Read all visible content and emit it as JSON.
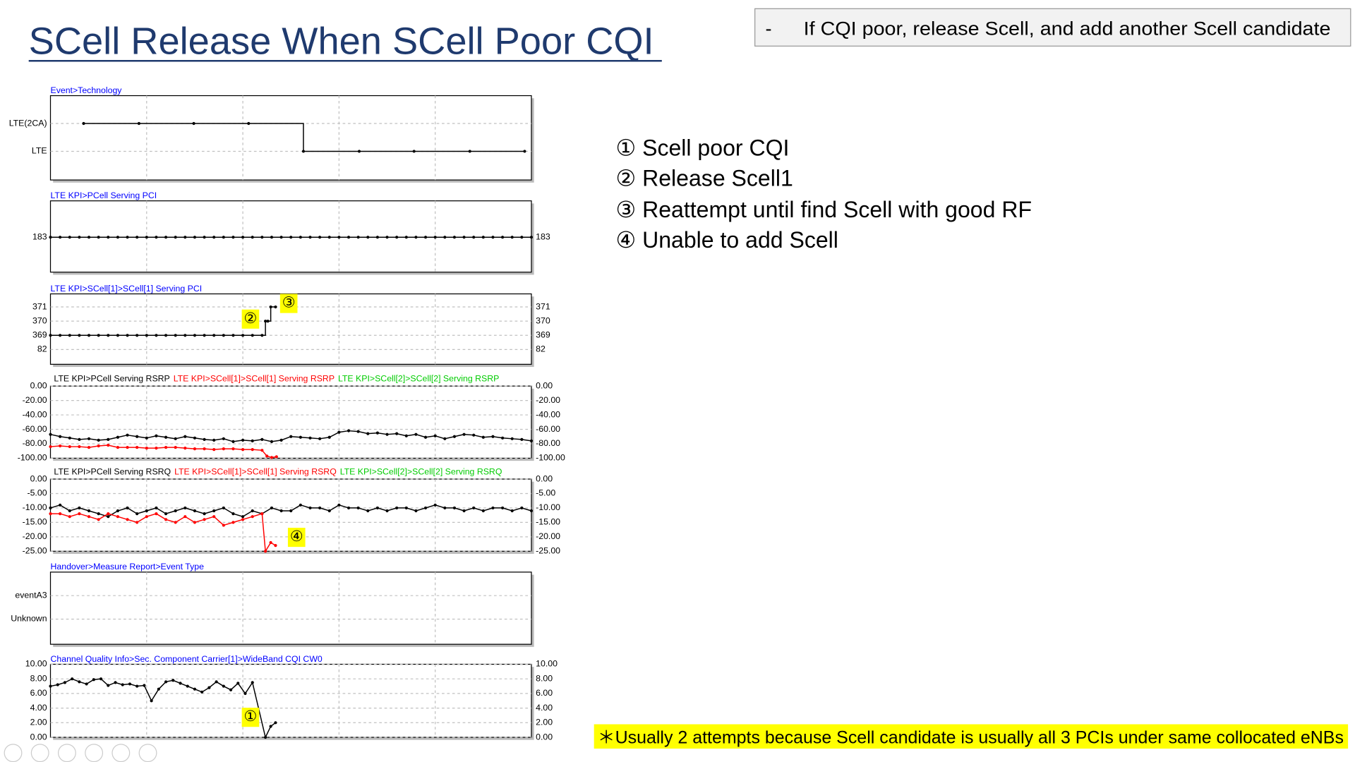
{
  "title": "SCell Release When SCell Poor CQI",
  "note_box": {
    "bullet": "-",
    "text": "If CQI poor, release Scell, and add another Scell candidate"
  },
  "steps": [
    "① Scell poor CQI",
    "② Release Scell1",
    "③ Reattempt until find Scell with good RF",
    "④ Unable to add Scell"
  ],
  "footnote": "＊Usually 2 attempts because Scell candidate is usually all 3 PCIs under same collocated eNBs",
  "chart_data": [
    {
      "type": "step",
      "title": "Event>Technology",
      "ycategories": [
        "LTE",
        "LTE(2CA)"
      ],
      "ylim": [
        -1.03,
        2
      ],
      "xlim": [
        0,
        100
      ],
      "xgrid": [
        20,
        40,
        60,
        80
      ],
      "grid": true,
      "right_axis": false,
      "series": [
        {
          "color": "#000000",
          "x": [
            6.9,
            18.4,
            29.8,
            41.2,
            52.6,
            64.2,
            75.6,
            87.2,
            98.6
          ],
          "values": [
            "LTE(2CA)",
            "LTE(2CA)",
            "LTE(2CA)",
            "LTE(2CA)",
            "LTE",
            "LTE",
            "LTE",
            "LTE",
            "LTE"
          ]
        }
      ]
    },
    {
      "type": "step",
      "title": "LTE KPI>PCell Serving PCI",
      "ycategories": [
        183
      ],
      "ylim": [
        -0.49,
        0.51
      ],
      "xlim": [
        0,
        100
      ],
      "xgrid": [
        20,
        40,
        60,
        80
      ],
      "grid": true,
      "right_axis": true,
      "series": [
        {
          "color": "#000000",
          "x": [
            0,
            2,
            4,
            6,
            8,
            10,
            12,
            14,
            16,
            18,
            20,
            22,
            24,
            26,
            28,
            30,
            32,
            34,
            36,
            38,
            40,
            42,
            44,
            46,
            48,
            50,
            52,
            54,
            56,
            58,
            60,
            62,
            64,
            66,
            68,
            70,
            72,
            74,
            76,
            78,
            80,
            82,
            84,
            86,
            88,
            90,
            92,
            94,
            96,
            98,
            100
          ],
          "values": [
            183,
            183,
            183,
            183,
            183,
            183,
            183,
            183,
            183,
            183,
            183,
            183,
            183,
            183,
            183,
            183,
            183,
            183,
            183,
            183,
            183,
            183,
            183,
            183,
            183,
            183,
            183,
            183,
            183,
            183,
            183,
            183,
            183,
            183,
            183,
            183,
            183,
            183,
            183,
            183,
            183,
            183,
            183,
            183,
            183,
            183,
            183,
            183,
            183,
            183,
            183
          ]
        }
      ]
    },
    {
      "type": "step",
      "title": "LTE KPI>SCell[1]>SCell[1] Serving PCI",
      "ycategories": [
        82,
        369,
        370,
        371
      ],
      "ylim": [
        -1.04,
        3.92
      ],
      "xlim": [
        0,
        100
      ],
      "xgrid": [
        20,
        40,
        60,
        80
      ],
      "grid": true,
      "right_axis": true,
      "annotations": [
        "②",
        "③"
      ],
      "series": [
        {
          "color": "#000000",
          "x": [
            0,
            2,
            4,
            6,
            8,
            10,
            12,
            14,
            16,
            18,
            20,
            22,
            24,
            26,
            28,
            30,
            32,
            34,
            36,
            38,
            40,
            42,
            44,
            44.7,
            45.2,
            45.8,
            46.8
          ],
          "values": [
            369,
            369,
            369,
            369,
            369,
            369,
            369,
            369,
            369,
            369,
            369,
            369,
            369,
            369,
            369,
            369,
            369,
            369,
            369,
            369,
            369,
            369,
            369,
            370,
            370,
            371,
            371
          ]
        }
      ]
    },
    {
      "type": "line",
      "ylim": [
        -100,
        0
      ],
      "xlim": [
        0,
        100
      ],
      "xgrid": [
        20,
        40,
        60,
        80
      ],
      "grid": true,
      "right_axis": true,
      "yticks": [
        {
          "value": 0,
          "label": "0.00"
        },
        {
          "value": -20,
          "label": "-20.00"
        },
        {
          "value": -40,
          "label": "-40.00"
        },
        {
          "value": -60,
          "label": "-60.00"
        },
        {
          "value": -80,
          "label": "-80.00"
        },
        {
          "value": -100,
          "label": "-100.00"
        }
      ],
      "series": [
        {
          "name": "LTE KPI>PCell Serving RSRP",
          "color": "#000000",
          "x": [
            0,
            2,
            4,
            6,
            8,
            10,
            12,
            14,
            16,
            18,
            20,
            22,
            24,
            26,
            28,
            30,
            32,
            34,
            36,
            38,
            40,
            42,
            44,
            46,
            48,
            50,
            52,
            54,
            56,
            58,
            60,
            62,
            64,
            66,
            68,
            70,
            72,
            74,
            76,
            78,
            80,
            82,
            84,
            86,
            88,
            90,
            92,
            94,
            96,
            98,
            100
          ],
          "values": [
            -67,
            -70,
            -72,
            -74,
            -73,
            -75,
            -74,
            -71,
            -68,
            -70,
            -72,
            -69,
            -71,
            -73,
            -70,
            -72,
            -74,
            -75,
            -73,
            -77,
            -75,
            -76,
            -74,
            -77,
            -75,
            -70,
            -71,
            -72,
            -73,
            -71,
            -64,
            -62,
            -63,
            -66,
            -65,
            -67,
            -66,
            -69,
            -67,
            -71,
            -69,
            -73,
            -70,
            -67,
            -68,
            -71,
            -70,
            -72,
            -73,
            -74,
            -76
          ]
        },
        {
          "name": "LTE KPI>SCell[1]>SCell[1] Serving RSRP",
          "color": "#ff0000",
          "x": [
            0,
            2,
            4,
            6,
            8,
            10,
            12,
            14,
            16,
            18,
            20,
            22,
            24,
            26,
            28,
            30,
            32,
            34,
            36,
            38,
            40,
            42,
            44,
            45,
            46,
            47
          ],
          "values": [
            -84,
            -83,
            -84,
            -84,
            -85,
            -83,
            -82,
            -85,
            -85,
            -85,
            -86,
            -86,
            -85,
            -85,
            -86,
            -87,
            -87,
            -88,
            -87,
            -87,
            -88,
            -88,
            -89,
            -97,
            -99,
            -98
          ]
        },
        {
          "name": "LTE KPI>SCell[2]>SCell[2] Serving RSRP",
          "color": "#00cc00",
          "x": [],
          "values": []
        }
      ]
    },
    {
      "type": "line",
      "ylim": [
        -25,
        0
      ],
      "xlim": [
        0,
        100
      ],
      "xgrid": [
        20,
        40,
        60,
        80
      ],
      "grid": true,
      "right_axis": true,
      "annotations": [
        "④"
      ],
      "yticks": [
        {
          "value": 0,
          "label": "0.00"
        },
        {
          "value": -5,
          "label": "-5.00"
        },
        {
          "value": -10,
          "label": "-10.00"
        },
        {
          "value": -15,
          "label": "-15.00"
        },
        {
          "value": -20,
          "label": "-20.00"
        },
        {
          "value": -25,
          "label": "-25.00"
        }
      ],
      "series": [
        {
          "name": "LTE KPI>PCell Serving RSRQ",
          "color": "#000000",
          "x": [
            0,
            2,
            4,
            6,
            8,
            10,
            12,
            14,
            16,
            18,
            20,
            22,
            24,
            26,
            28,
            30,
            32,
            34,
            36,
            38,
            40,
            42,
            44,
            46,
            48,
            50,
            52,
            54,
            56,
            58,
            60,
            62,
            64,
            66,
            68,
            70,
            72,
            74,
            76,
            78,
            80,
            82,
            84,
            86,
            88,
            90,
            92,
            94,
            96,
            98,
            100
          ],
          "values": [
            -10,
            -9,
            -11,
            -10,
            -11,
            -12,
            -13,
            -11,
            -10,
            -12,
            -11,
            -10,
            -12,
            -11,
            -10,
            -11,
            -12,
            -11,
            -10,
            -12,
            -13,
            -11,
            -12,
            -10,
            -11,
            -11,
            -9,
            -10,
            -10,
            -11,
            -9,
            -10,
            -10,
            -11,
            -10,
            -11,
            -10,
            -10,
            -11,
            -10,
            -9,
            -10,
            -10,
            -11,
            -10,
            -11,
            -10,
            -10,
            -11,
            -10,
            -11
          ]
        },
        {
          "name": "LTE KPI>SCell[1]>SCell[1] Serving RSRQ",
          "color": "#ff0000",
          "x": [
            0,
            2,
            4,
            6,
            8,
            10,
            12,
            14,
            16,
            18,
            20,
            22,
            24,
            26,
            28,
            30,
            32,
            34,
            36,
            38,
            40,
            42,
            44,
            44.7,
            45.8,
            46.8
          ],
          "values": [
            -12,
            -12,
            -13,
            -12,
            -13,
            -14,
            -12,
            -13,
            -14,
            -15,
            -13,
            -12,
            -14,
            -15,
            -13,
            -15,
            -14,
            -13,
            -16,
            -15,
            -14,
            -13,
            -12,
            -25,
            -22,
            -23
          ]
        },
        {
          "name": "LTE KPI>SCell[2]>SCell[2] Serving RSRQ",
          "color": "#00cc00",
          "x": [],
          "values": []
        }
      ]
    },
    {
      "type": "step",
      "title": "Handover>Measure Report>Event Type",
      "ycategories": [
        "Unknown",
        "eventA3"
      ],
      "ylim": [
        -1.07,
        2
      ],
      "xlim": [
        0,
        100
      ],
      "xgrid": [
        20,
        40,
        60,
        80
      ],
      "grid": true,
      "right_axis": false,
      "series": []
    },
    {
      "type": "line",
      "title": "Channel Quality Info>Sec. Component Carrier[1]>WideBand CQI CW0",
      "ylim": [
        0,
        10
      ],
      "xlim": [
        0,
        100
      ],
      "xgrid": [
        20,
        40,
        60,
        80
      ],
      "grid": true,
      "right_axis": true,
      "annotations": [
        "①"
      ],
      "yticks": [
        {
          "value": 10,
          "label": "10.00"
        },
        {
          "value": 8,
          "label": "8.00"
        },
        {
          "value": 6,
          "label": "6.00"
        },
        {
          "value": 4,
          "label": "4.00"
        },
        {
          "value": 2,
          "label": "2.00"
        },
        {
          "value": 0,
          "label": "0.00"
        }
      ],
      "series": [
        {
          "color": "#000000",
          "x": [
            0,
            1.5,
            3,
            4.5,
            6,
            7.5,
            9,
            10.5,
            12,
            13.5,
            15,
            16.5,
            18,
            19.5,
            21,
            22.5,
            24,
            25.5,
            27,
            28.5,
            30,
            31.5,
            33,
            34.5,
            36,
            37.5,
            39,
            40.5,
            42,
            44.7,
            45.8,
            46.8
          ],
          "values": [
            7,
            7.2,
            7.5,
            8,
            7.6,
            7.3,
            7.9,
            8,
            7.1,
            7.5,
            7.2,
            7.3,
            7,
            7.1,
            5,
            6.6,
            7.6,
            7.8,
            7.4,
            7,
            6.6,
            6.2,
            6.8,
            7.6,
            7,
            6.5,
            7.4,
            6,
            7.5,
            0,
            1.5,
            2
          ]
        }
      ]
    }
  ]
}
